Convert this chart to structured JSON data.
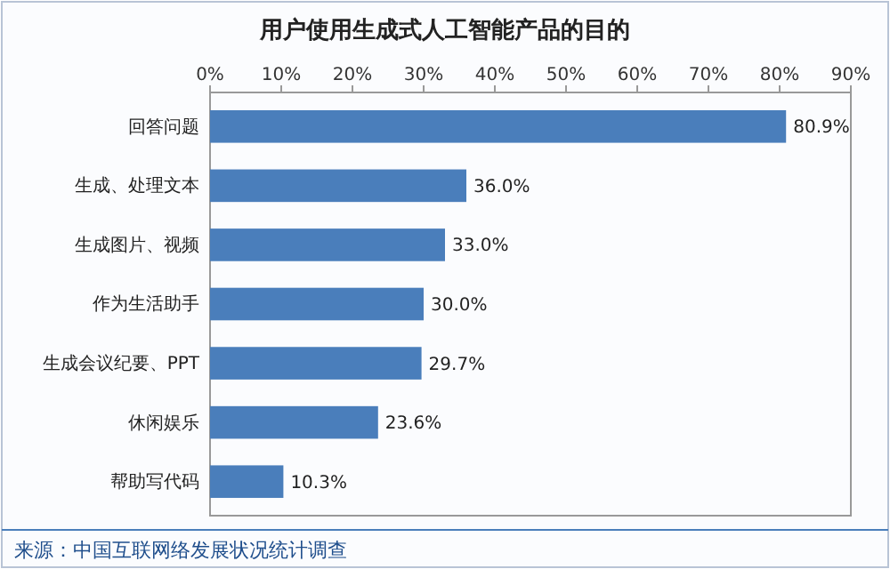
{
  "chart_data": {
    "type": "bar",
    "orientation": "horizontal",
    "title": "用户使用生成式人工智能产品的目的",
    "categories": [
      "回答问题",
      "生成、处理文本",
      "生成图片、视频",
      "作为生活助手",
      "生成会议纪要、PPT",
      "休闲娱乐",
      "帮助写代码"
    ],
    "values": [
      80.9,
      36.0,
      33.0,
      30.0,
      29.7,
      23.6,
      10.3
    ],
    "value_labels": [
      "80.9%",
      "36.0%",
      "33.0%",
      "30.0%",
      "29.7%",
      "23.6%",
      "10.3%"
    ],
    "color": "#4a7ebb",
    "xlim": [
      0,
      90
    ],
    "xticks": [
      {
        "value": 0,
        "label": "0%"
      },
      {
        "value": 10,
        "label": "10%"
      },
      {
        "value": 20,
        "label": "20%"
      },
      {
        "value": 30,
        "label": "30%"
      },
      {
        "value": 40,
        "label": "40%"
      },
      {
        "value": 50,
        "label": "50%"
      },
      {
        "value": 60,
        "label": "60%"
      },
      {
        "value": 70,
        "label": "70%"
      },
      {
        "value": 80,
        "label": "80%"
      },
      {
        "value": 90,
        "label": "90%"
      }
    ],
    "annotations": [
      "来源：中国互联网络发展状况统计调查"
    ]
  }
}
